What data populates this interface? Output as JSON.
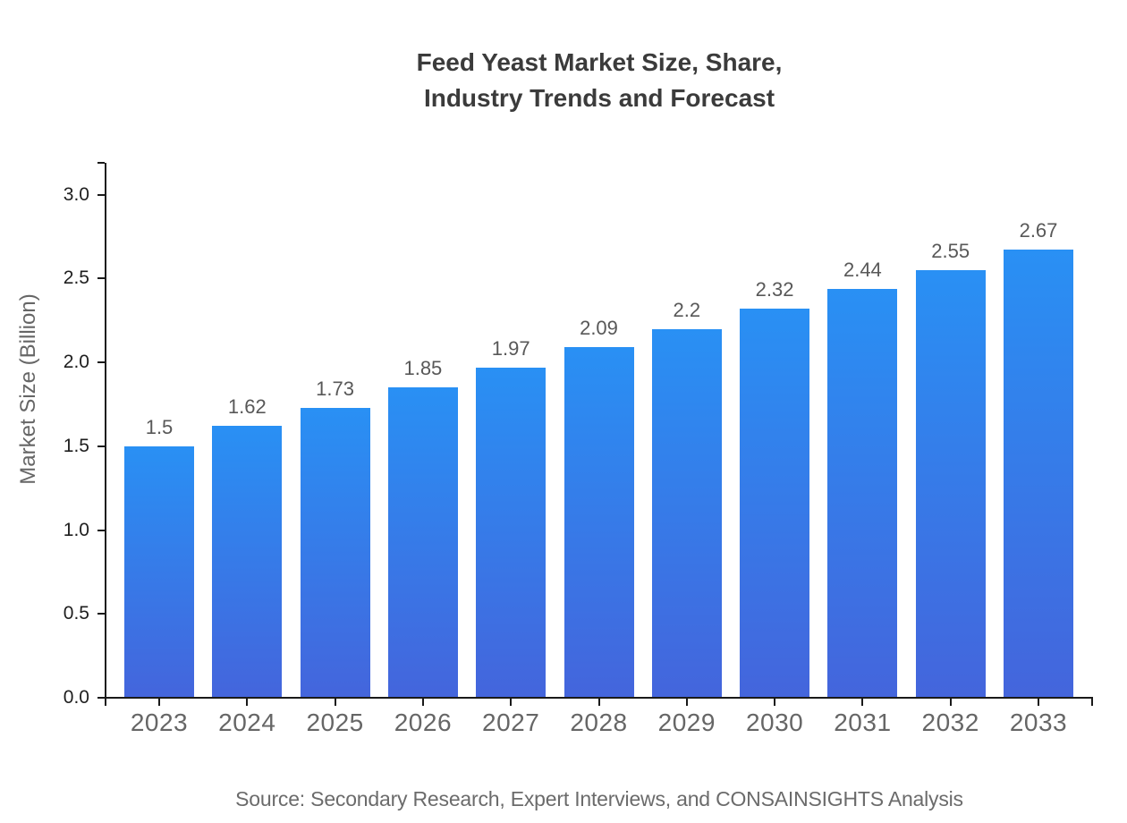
{
  "chart_data": {
    "type": "bar",
    "title": "Feed Yeast Market Size, Share, Industry Trends and Forecast",
    "title_lines": [
      "Feed Yeast Market Size, Share,",
      "Industry Trends and Forecast"
    ],
    "categories": [
      "2023",
      "2024",
      "2025",
      "2026",
      "2027",
      "2028",
      "2029",
      "2030",
      "2031",
      "2032",
      "2033"
    ],
    "values": [
      1.5,
      1.62,
      1.73,
      1.85,
      1.97,
      2.09,
      2.2,
      2.32,
      2.44,
      2.55,
      2.67
    ],
    "value_labels": [
      "1.5",
      "1.62",
      "1.73",
      "1.85",
      "1.97",
      "2.09",
      "2.2",
      "2.32",
      "2.44",
      "2.55",
      "2.67"
    ],
    "xlabel": "",
    "ylabel": "Market Size (Billion)",
    "ylim": [
      0,
      3.2
    ],
    "yticks": [
      0.0,
      0.5,
      1.0,
      1.5,
      2.0,
      2.5,
      3.0
    ],
    "ytick_labels": [
      "0.0",
      "0.5",
      "1.0",
      "1.5",
      "2.0",
      "2.5",
      "3.0"
    ],
    "grid": false,
    "legend": null,
    "colors": {
      "bar_gradient_top": "#2990F4",
      "bar_gradient_bottom": "#4465DC",
      "axis": "#1a1a1a",
      "title_text": "#3b3b3b",
      "ytick_text": "#1e1e1e",
      "xtick_text": "#666666",
      "value_label_text": "#585858",
      "ylabel_text": "#666666",
      "source_text": "#6b6b6b"
    }
  },
  "footer": {
    "source": "Source: Secondary Research, Expert Interviews, and CONSAINSIGHTS Analysis"
  }
}
